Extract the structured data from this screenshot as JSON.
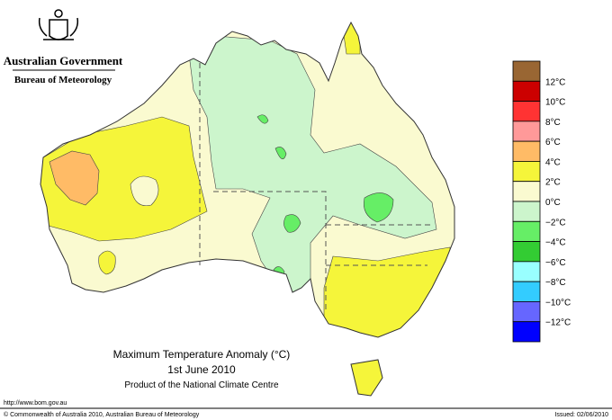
{
  "header": {
    "government": "Australian Government",
    "bureau": "Bureau of Meteorology"
  },
  "title": "Maximum Temperature Anomaly (°C)",
  "date": "1st June 2010",
  "subtitle": "Product of the National Climate Centre",
  "legend": {
    "colors": [
      "#996633",
      "#cc0000",
      "#ff3333",
      "#ff9999",
      "#ffbb66",
      "#f5f53a",
      "#fafad0",
      "#ccf5cc",
      "#66ee66",
      "#33cc33",
      "#99ffff",
      "#33ccff",
      "#6666ff",
      "#0000ff"
    ],
    "labels": [
      "12°C",
      "10°C",
      "8°C",
      "6°C",
      "4°C",
      "2°C",
      "0°C",
      "−2°C",
      "−4°C",
      "−6°C",
      "−8°C",
      "−10°C",
      "−12°C"
    ]
  },
  "footer": {
    "url": "http://www.bom.gov.au",
    "copyright": "© Commonwealth of Australia 2010, Australian Bureau of Meteorology",
    "issued": "Issued: 02/06/2010"
  }
}
